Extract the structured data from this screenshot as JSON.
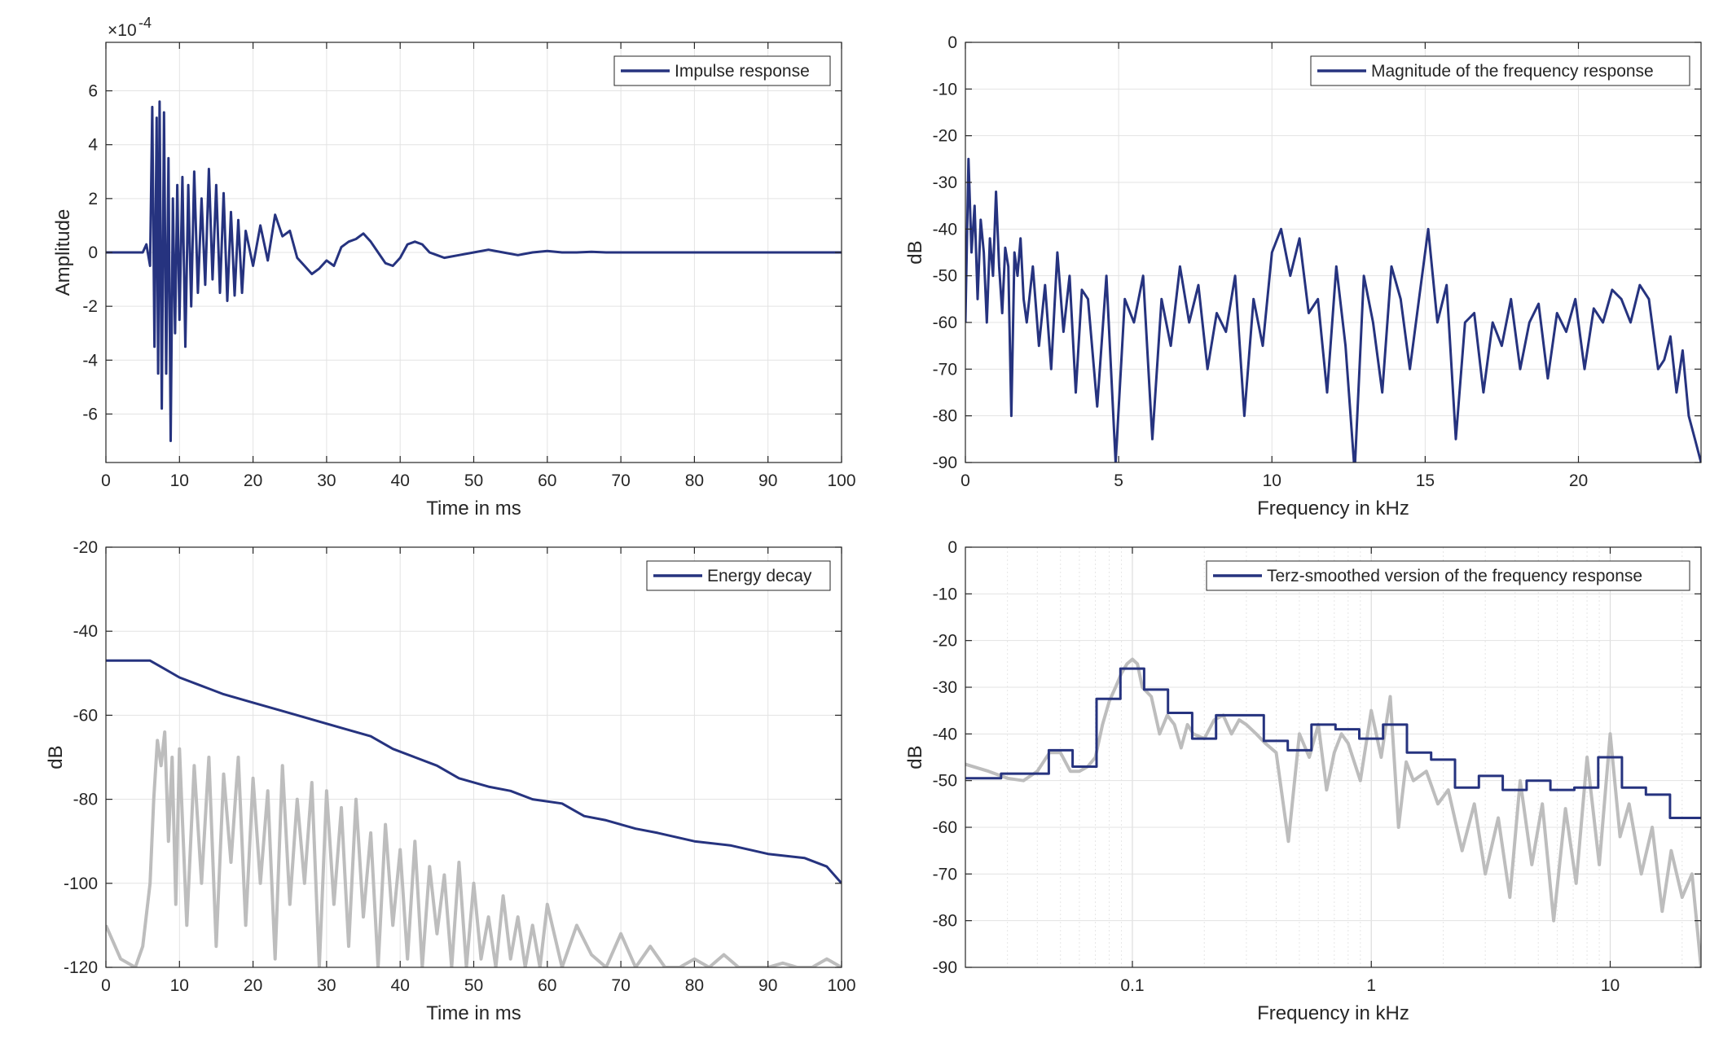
{
  "chart_data": [
    {
      "type": "line",
      "xlabel": "Time in ms",
      "ylabel": "Amplitude",
      "xlim": [
        0,
        100
      ],
      "ylim": [
        -7.8,
        7.8
      ],
      "y_exponent_label": "×10",
      "y_exponent_value": "-4",
      "x_ticks": [
        0,
        10,
        20,
        30,
        40,
        50,
        60,
        70,
        80,
        90,
        100
      ],
      "y_ticks": [
        6,
        4,
        2,
        0,
        -2,
        -4,
        -6
      ],
      "legend": "top-right",
      "grid": true,
      "series": [
        {
          "name": "Impulse response",
          "color": "#26337f",
          "x": [
            0,
            5,
            5.5,
            6,
            6.3,
            6.6,
            6.9,
            7.1,
            7.3,
            7.6,
            7.9,
            8.2,
            8.5,
            8.8,
            9.1,
            9.4,
            9.7,
            10,
            10.4,
            10.8,
            11.2,
            11.6,
            12,
            12.5,
            13,
            13.5,
            14,
            14.5,
            15,
            15.5,
            16,
            16.5,
            17,
            17.5,
            18,
            18.5,
            19,
            20,
            21,
            22,
            23,
            24,
            25,
            26,
            27,
            28,
            29,
            30,
            31,
            32,
            33,
            34,
            35,
            36,
            37,
            38,
            39,
            40,
            41,
            42,
            43,
            44,
            45,
            46,
            48,
            50,
            52,
            54,
            56,
            58,
            60,
            62,
            64,
            66,
            68,
            70,
            75,
            80,
            85,
            90,
            95,
            100
          ],
          "values": [
            0,
            0,
            0.3,
            -0.5,
            5.4,
            -3.5,
            5.0,
            -4.5,
            5.6,
            -5.8,
            5.2,
            -4.5,
            3.5,
            -7.0,
            2.0,
            -3.0,
            2.5,
            -2.5,
            2.8,
            -3.5,
            2.5,
            -2.0,
            3.0,
            -1.5,
            2.0,
            -1.2,
            3.1,
            -1.0,
            2.5,
            -1.5,
            2.2,
            -1.8,
            1.5,
            -1.6,
            1.2,
            -1.5,
            0.8,
            -0.5,
            1.0,
            -0.3,
            1.4,
            0.6,
            0.8,
            -0.2,
            -0.5,
            -0.8,
            -0.6,
            -0.3,
            -0.5,
            0.2,
            0.4,
            0.5,
            0.7,
            0.4,
            0.0,
            -0.4,
            -0.5,
            -0.2,
            0.3,
            0.4,
            0.3,
            0.0,
            -0.1,
            -0.2,
            -0.1,
            0.0,
            0.1,
            0.0,
            -0.1,
            0.0,
            0.05,
            0.0,
            0.0,
            0.02,
            0.0,
            0.0,
            0.0,
            0.0,
            0.0,
            0.0,
            0.0,
            0.0
          ]
        }
      ]
    },
    {
      "type": "line",
      "xlabel": "Frequency in kHz",
      "ylabel": "dB",
      "xlim": [
        0,
        24
      ],
      "ylim": [
        -90,
        0
      ],
      "x_ticks": [
        0,
        5,
        10,
        15,
        20
      ],
      "y_ticks": [
        0,
        -10,
        -20,
        -30,
        -40,
        -50,
        -60,
        -70,
        -80,
        -90
      ],
      "legend": "top-right",
      "grid": true,
      "series": [
        {
          "name": "Magnitude of the frequency response",
          "color": "#26337f",
          "x": [
            0,
            0.1,
            0.2,
            0.3,
            0.4,
            0.5,
            0.6,
            0.7,
            0.8,
            0.9,
            1.0,
            1.1,
            1.2,
            1.3,
            1.4,
            1.5,
            1.6,
            1.7,
            1.8,
            1.9,
            2.0,
            2.2,
            2.4,
            2.6,
            2.8,
            3.0,
            3.2,
            3.4,
            3.6,
            3.8,
            4.0,
            4.3,
            4.6,
            4.9,
            5.2,
            5.5,
            5.8,
            6.1,
            6.4,
            6.7,
            7.0,
            7.3,
            7.6,
            7.9,
            8.2,
            8.5,
            8.8,
            9.1,
            9.4,
            9.7,
            10.0,
            10.3,
            10.6,
            10.9,
            11.2,
            11.5,
            11.8,
            12.1,
            12.4,
            12.7,
            13.0,
            13.3,
            13.6,
            13.9,
            14.2,
            14.5,
            14.8,
            15.1,
            15.4,
            15.7,
            16.0,
            16.3,
            16.6,
            16.9,
            17.2,
            17.5,
            17.8,
            18.1,
            18.4,
            18.7,
            19.0,
            19.3,
            19.6,
            19.9,
            20.2,
            20.5,
            20.8,
            21.1,
            21.4,
            21.7,
            22.0,
            22.3,
            22.6,
            22.8,
            23.0,
            23.2,
            23.4,
            23.6,
            23.8,
            24.0
          ],
          "values": [
            -60,
            -25,
            -45,
            -35,
            -55,
            -38,
            -45,
            -60,
            -42,
            -50,
            -32,
            -48,
            -58,
            -44,
            -48,
            -80,
            -45,
            -50,
            -42,
            -55,
            -60,
            -48,
            -65,
            -52,
            -70,
            -45,
            -62,
            -50,
            -75,
            -53,
            -55,
            -78,
            -50,
            -90,
            -55,
            -60,
            -50,
            -85,
            -55,
            -65,
            -48,
            -60,
            -52,
            -70,
            -58,
            -62,
            -50,
            -80,
            -55,
            -65,
            -45,
            -40,
            -50,
            -42,
            -58,
            -55,
            -75,
            -48,
            -65,
            -92,
            -50,
            -60,
            -75,
            -48,
            -55,
            -70,
            -55,
            -40,
            -60,
            -52,
            -85,
            -60,
            -58,
            -75,
            -60,
            -65,
            -55,
            -70,
            -60,
            -56,
            -72,
            -58,
            -62,
            -55,
            -70,
            -57,
            -60,
            -53,
            -55,
            -60,
            -52,
            -55,
            -70,
            -68,
            -63,
            -75,
            -66,
            -80,
            -85,
            -90
          ]
        }
      ]
    },
    {
      "type": "line",
      "xlabel": "Time in ms",
      "ylabel": "dB",
      "xlim": [
        0,
        100
      ],
      "ylim": [
        -120,
        -20
      ],
      "x_ticks": [
        0,
        10,
        20,
        30,
        40,
        50,
        60,
        70,
        80,
        90,
        100
      ],
      "y_ticks": [
        -20,
        -40,
        -60,
        -80,
        -100,
        -120
      ],
      "legend": "top-right",
      "grid": true,
      "series": [
        {
          "name": "Energy decay",
          "color": "#26337f",
          "x": [
            0,
            6,
            8,
            10,
            13,
            16,
            20,
            24,
            28,
            32,
            36,
            39,
            42,
            45,
            48,
            52,
            55,
            58,
            62,
            65,
            68,
            72,
            75,
            80,
            85,
            90,
            95,
            98,
            100
          ],
          "values": [
            -47,
            -47,
            -49,
            -51,
            -53,
            -55,
            -57,
            -59,
            -61,
            -63,
            -65,
            -68,
            -70,
            -72,
            -75,
            -77,
            -78,
            -80,
            -81,
            -84,
            -85,
            -87,
            -88,
            -90,
            -91,
            -93,
            -94,
            -96,
            -100
          ]
        },
        {
          "color": "#bdbdbd",
          "x": [
            0,
            2,
            4,
            5,
            6,
            6.5,
            7,
            7.5,
            8,
            8.5,
            9,
            9.5,
            10,
            11,
            12,
            13,
            14,
            15,
            16,
            17,
            18,
            19,
            20,
            21,
            22,
            23,
            24,
            25,
            26,
            27,
            28,
            29,
            30,
            31,
            32,
            33,
            34,
            35,
            36,
            37,
            38,
            39,
            40,
            41,
            42,
            43,
            44,
            45,
            46,
            47,
            48,
            49,
            50,
            51,
            52,
            53,
            54,
            55,
            56,
            57,
            58,
            59,
            60,
            62,
            64,
            66,
            68,
            70,
            72,
            74,
            76,
            78,
            80,
            82,
            84,
            86,
            88,
            90,
            92,
            94,
            96,
            98,
            100
          ],
          "values": [
            -110,
            -118,
            -120,
            -115,
            -100,
            -80,
            -66,
            -72,
            -64,
            -90,
            -70,
            -105,
            -68,
            -110,
            -72,
            -100,
            -70,
            -115,
            -74,
            -95,
            -70,
            -110,
            -75,
            -100,
            -78,
            -118,
            -72,
            -105,
            -80,
            -100,
            -76,
            -120,
            -78,
            -105,
            -82,
            -115,
            -80,
            -108,
            -88,
            -120,
            -86,
            -110,
            -92,
            -118,
            -90,
            -120,
            -96,
            -112,
            -98,
            -120,
            -95,
            -120,
            -100,
            -118,
            -108,
            -120,
            -103,
            -118,
            -108,
            -120,
            -110,
            -120,
            -105,
            -120,
            -110,
            -117,
            -120,
            -112,
            -120,
            -115,
            -120,
            -120,
            -118,
            -120,
            -117,
            -120,
            -120,
            -120,
            -119,
            -120,
            -120,
            -118,
            -120
          ]
        }
      ]
    },
    {
      "type": "line",
      "xlabel": "Frequency in kHz",
      "ylabel": "dB",
      "xscale": "log",
      "xlim": [
        0.02,
        24
      ],
      "ylim": [
        -90,
        0
      ],
      "x_ticks": [
        0.1,
        1,
        10
      ],
      "x_tick_labels": [
        "0.1",
        "1",
        "10"
      ],
      "y_ticks": [
        0,
        -10,
        -20,
        -30,
        -40,
        -50,
        -60,
        -70,
        -80,
        -90
      ],
      "legend": "top-right",
      "grid": true,
      "series": [
        {
          "name": "Terz-smoothed version of the frequency response",
          "color": "#26337f",
          "step_edges": [
            0.02,
            0.0282,
            0.0447,
            0.0562,
            0.0708,
            0.0891,
            0.112,
            0.141,
            0.178,
            0.224,
            0.282,
            0.355,
            0.447,
            0.562,
            0.708,
            0.891,
            1.12,
            1.41,
            1.78,
            2.24,
            2.82,
            3.55,
            4.47,
            5.62,
            7.08,
            8.91,
            11.2,
            14.1,
            17.8,
            24
          ],
          "values": [
            -49.5,
            -48.5,
            -43.5,
            -47,
            -32.5,
            -26,
            -30.5,
            -35.5,
            -41,
            -36,
            -36,
            -41.5,
            -43.5,
            -38,
            -39,
            -41,
            -38,
            -44,
            -45.5,
            -51.5,
            -49,
            -52,
            -50,
            -52,
            -51.5,
            -45,
            -51.5,
            -53,
            -58
          ]
        },
        {
          "color": "#bdbdbd",
          "x": [
            0.02,
            0.025,
            0.03,
            0.035,
            0.04,
            0.045,
            0.05,
            0.055,
            0.06,
            0.065,
            0.07,
            0.075,
            0.08,
            0.085,
            0.09,
            0.095,
            0.1,
            0.105,
            0.11,
            0.12,
            0.13,
            0.14,
            0.15,
            0.16,
            0.17,
            0.18,
            0.2,
            0.22,
            0.24,
            0.26,
            0.28,
            0.3,
            0.33,
            0.36,
            0.4,
            0.45,
            0.5,
            0.55,
            0.6,
            0.65,
            0.7,
            0.75,
            0.8,
            0.9,
            1.0,
            1.1,
            1.2,
            1.3,
            1.4,
            1.5,
            1.7,
            1.9,
            2.1,
            2.4,
            2.7,
            3.0,
            3.4,
            3.8,
            4.2,
            4.7,
            5.2,
            5.8,
            6.5,
            7.2,
            8.0,
            9.0,
            10.0,
            11.0,
            12.0,
            13.5,
            15.0,
            16.5,
            18.0,
            20.0,
            22.0,
            24.0
          ],
          "values": [
            -46.5,
            -48,
            -49.5,
            -50,
            -48,
            -44,
            -44,
            -48,
            -48,
            -47,
            -45,
            -38,
            -33,
            -30,
            -27,
            -25,
            -24,
            -25,
            -30,
            -32,
            -40,
            -36,
            -38,
            -43,
            -38,
            -40,
            -41,
            -37,
            -36,
            -40,
            -37,
            -38,
            -40,
            -42,
            -44,
            -63,
            -40,
            -45,
            -38,
            -52,
            -44,
            -40,
            -42,
            -50,
            -35,
            -45,
            -32,
            -60,
            -46,
            -50,
            -48,
            -55,
            -52,
            -65,
            -55,
            -70,
            -58,
            -75,
            -50,
            -68,
            -55,
            -80,
            -56,
            -72,
            -45,
            -68,
            -40,
            -62,
            -55,
            -70,
            -60,
            -78,
            -65,
            -75,
            -70,
            -90
          ]
        }
      ]
    }
  ]
}
